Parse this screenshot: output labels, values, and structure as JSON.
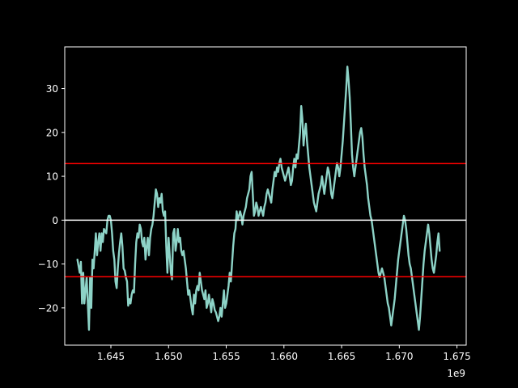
{
  "chart_data": {
    "type": "line",
    "title": "",
    "xlabel": "",
    "ylabel": "",
    "x_offset_label": "1e9",
    "xlim": [
      1.641,
      1.6758
    ],
    "ylim": [
      -28.5,
      39.5
    ],
    "x_ticks": [
      1.645,
      1.65,
      1.655,
      1.66,
      1.665,
      1.67,
      1.675
    ],
    "x_tick_labels": [
      "1.645",
      "1.650",
      "1.655",
      "1.660",
      "1.665",
      "1.670",
      "1.675"
    ],
    "y_ticks": [
      -20,
      -10,
      0,
      10,
      20,
      30
    ],
    "y_tick_labels": [
      "−20",
      "−10",
      "0",
      "10",
      "20",
      "30"
    ],
    "grid": false,
    "background": "#000000",
    "series_color": "#8dd3c7",
    "series": [
      {
        "color": "#8dd3c7",
        "points": [
          [
            1.6421,
            -9
          ],
          [
            1.6423,
            -12
          ],
          [
            1.6424,
            -9.5
          ],
          [
            1.6425,
            -19
          ],
          [
            1.6426,
            -12
          ],
          [
            1.6427,
            -19
          ],
          [
            1.6429,
            -13
          ],
          [
            1.643,
            -19
          ],
          [
            1.6431,
            -25
          ],
          [
            1.6432,
            -13
          ],
          [
            1.6433,
            -20
          ],
          [
            1.6434,
            -9
          ],
          [
            1.6435,
            -11
          ],
          [
            1.6436,
            -7
          ],
          [
            1.6437,
            -3
          ],
          [
            1.6438,
            -8
          ],
          [
            1.6439,
            -5
          ],
          [
            1.644,
            -3
          ],
          [
            1.6441,
            -7
          ],
          [
            1.6442,
            -3
          ],
          [
            1.6443,
            -5
          ],
          [
            1.6444,
            -2
          ],
          [
            1.6446,
            -3
          ],
          [
            1.6447,
            0
          ],
          [
            1.6448,
            1
          ],
          [
            1.6449,
            1
          ],
          [
            1.645,
            0
          ],
          [
            1.6451,
            -3
          ],
          [
            1.6452,
            -7
          ],
          [
            1.6453,
            -9
          ],
          [
            1.6454,
            -14
          ],
          [
            1.6455,
            -15.5
          ],
          [
            1.6456,
            -11
          ],
          [
            1.6457,
            -7.5
          ],
          [
            1.6458,
            -5
          ],
          [
            1.6459,
            -3
          ],
          [
            1.646,
            -6
          ],
          [
            1.6461,
            -11
          ],
          [
            1.6462,
            -11.5
          ],
          [
            1.6463,
            -13
          ],
          [
            1.6464,
            -14
          ],
          [
            1.6465,
            -19.5
          ],
          [
            1.6466,
            -18
          ],
          [
            1.6467,
            -19
          ],
          [
            1.6468,
            -17
          ],
          [
            1.6469,
            -16
          ],
          [
            1.647,
            -16.5
          ],
          [
            1.6471,
            -10
          ],
          [
            1.6472,
            -5
          ],
          [
            1.6473,
            -3
          ],
          [
            1.6474,
            -4
          ],
          [
            1.6475,
            -1
          ],
          [
            1.6476,
            -2
          ],
          [
            1.6477,
            -5
          ],
          [
            1.6478,
            -6
          ],
          [
            1.6479,
            -4
          ],
          [
            1.648,
            -9
          ],
          [
            1.6481,
            -6
          ],
          [
            1.6482,
            -4
          ],
          [
            1.6483,
            -8
          ],
          [
            1.6484,
            -4
          ],
          [
            1.6485,
            -2
          ],
          [
            1.6486,
            -1
          ],
          [
            1.6487,
            1
          ],
          [
            1.6488,
            4
          ],
          [
            1.6489,
            7
          ],
          [
            1.649,
            6
          ],
          [
            1.6491,
            3
          ],
          [
            1.6492,
            5
          ],
          [
            1.6493,
            4
          ],
          [
            1.6494,
            6
          ],
          [
            1.6495,
            2
          ],
          [
            1.6496,
            1
          ],
          [
            1.6497,
            2
          ],
          [
            1.6498,
            -6
          ],
          [
            1.6499,
            -12
          ],
          [
            1.65,
            -4
          ],
          [
            1.6501,
            -8
          ],
          [
            1.6502,
            -12
          ],
          [
            1.6503,
            -13.5
          ],
          [
            1.6504,
            -3
          ],
          [
            1.6505,
            -2
          ],
          [
            1.6506,
            -7
          ],
          [
            1.6507,
            -5
          ],
          [
            1.6508,
            -2
          ],
          [
            1.6509,
            -5
          ],
          [
            1.651,
            -4
          ],
          [
            1.6511,
            -7
          ],
          [
            1.6512,
            -8
          ],
          [
            1.6513,
            -7
          ],
          [
            1.6514,
            -9
          ],
          [
            1.6515,
            -11
          ],
          [
            1.6516,
            -14
          ],
          [
            1.6517,
            -17
          ],
          [
            1.6518,
            -16
          ],
          [
            1.6519,
            -18
          ],
          [
            1.652,
            -20
          ],
          [
            1.6521,
            -21.5
          ],
          [
            1.6522,
            -17
          ],
          [
            1.6523,
            -19
          ],
          [
            1.6524,
            -16
          ],
          [
            1.6525,
            -15
          ],
          [
            1.6526,
            -16
          ],
          [
            1.6527,
            -12
          ],
          [
            1.6528,
            -14
          ],
          [
            1.6529,
            -16
          ],
          [
            1.653,
            -17
          ],
          [
            1.6531,
            -18
          ],
          [
            1.6532,
            -16
          ],
          [
            1.6533,
            -20
          ],
          [
            1.6534,
            -19
          ],
          [
            1.6535,
            -17
          ],
          [
            1.6536,
            -19
          ],
          [
            1.6537,
            -21
          ],
          [
            1.6538,
            -18
          ],
          [
            1.6539,
            -19
          ],
          [
            1.654,
            -20.5
          ],
          [
            1.6541,
            -21
          ],
          [
            1.6542,
            -22
          ],
          [
            1.6543,
            -23
          ],
          [
            1.6544,
            -22
          ],
          [
            1.6545,
            -20
          ],
          [
            1.6546,
            -22
          ],
          [
            1.6547,
            -19
          ],
          [
            1.6548,
            -16
          ],
          [
            1.6549,
            -20
          ],
          [
            1.655,
            -19
          ],
          [
            1.6551,
            -17
          ],
          [
            1.6552,
            -15
          ],
          [
            1.6553,
            -12
          ],
          [
            1.6554,
            -14
          ],
          [
            1.6555,
            -10
          ],
          [
            1.6556,
            -6
          ],
          [
            1.6557,
            -3
          ],
          [
            1.6558,
            -2
          ],
          [
            1.6559,
            2
          ],
          [
            1.656,
            0
          ],
          [
            1.6561,
            1
          ],
          [
            1.6562,
            2
          ],
          [
            1.6563,
            1
          ],
          [
            1.6564,
            -1
          ],
          [
            1.6565,
            1
          ],
          [
            1.6566,
            2
          ],
          [
            1.6567,
            3
          ],
          [
            1.6568,
            5
          ],
          [
            1.6569,
            6
          ],
          [
            1.657,
            7
          ],
          [
            1.6571,
            10
          ],
          [
            1.6572,
            11
          ],
          [
            1.6573,
            6
          ],
          [
            1.6574,
            1
          ],
          [
            1.6575,
            2
          ],
          [
            1.6576,
            4
          ],
          [
            1.6577,
            3
          ],
          [
            1.6578,
            1
          ],
          [
            1.6579,
            2
          ],
          [
            1.658,
            3
          ],
          [
            1.6581,
            2
          ],
          [
            1.6582,
            1
          ],
          [
            1.6583,
            3
          ],
          [
            1.6584,
            4
          ],
          [
            1.6585,
            6
          ],
          [
            1.6586,
            7
          ],
          [
            1.6587,
            6
          ],
          [
            1.6588,
            5
          ],
          [
            1.6589,
            4
          ],
          [
            1.659,
            7
          ],
          [
            1.6591,
            9
          ],
          [
            1.6592,
            11
          ],
          [
            1.6593,
            10
          ],
          [
            1.6594,
            12
          ],
          [
            1.6595,
            11
          ],
          [
            1.6596,
            13
          ],
          [
            1.6597,
            14
          ],
          [
            1.6598,
            12
          ],
          [
            1.6599,
            11
          ],
          [
            1.66,
            10
          ],
          [
            1.6601,
            9
          ],
          [
            1.6602,
            10
          ],
          [
            1.6603,
            11
          ],
          [
            1.6604,
            12
          ],
          [
            1.6605,
            10
          ],
          [
            1.6606,
            8
          ],
          [
            1.6607,
            9
          ],
          [
            1.6608,
            12
          ],
          [
            1.6609,
            14
          ],
          [
            1.661,
            12
          ],
          [
            1.6611,
            15
          ],
          [
            1.6612,
            14
          ],
          [
            1.6613,
            17
          ],
          [
            1.6614,
            20
          ],
          [
            1.6615,
            26
          ],
          [
            1.6616,
            23
          ],
          [
            1.6617,
            17
          ],
          [
            1.6618,
            20
          ],
          [
            1.6619,
            22
          ],
          [
            1.662,
            18
          ],
          [
            1.6621,
            15
          ],
          [
            1.6622,
            12
          ],
          [
            1.6623,
            10
          ],
          [
            1.6624,
            8
          ],
          [
            1.6625,
            6
          ],
          [
            1.6626,
            4
          ],
          [
            1.6627,
            3
          ],
          [
            1.6628,
            2
          ],
          [
            1.6629,
            4
          ],
          [
            1.663,
            6
          ],
          [
            1.6631,
            7
          ],
          [
            1.6632,
            8
          ],
          [
            1.6633,
            10
          ],
          [
            1.6634,
            8
          ],
          [
            1.6635,
            6
          ],
          [
            1.6636,
            8
          ],
          [
            1.6637,
            10
          ],
          [
            1.6638,
            12
          ],
          [
            1.6639,
            11
          ],
          [
            1.664,
            9
          ],
          [
            1.6641,
            6
          ],
          [
            1.6642,
            5
          ],
          [
            1.6643,
            7
          ],
          [
            1.6644,
            9
          ],
          [
            1.6645,
            11
          ],
          [
            1.6646,
            13
          ],
          [
            1.6647,
            12
          ],
          [
            1.6648,
            10
          ],
          [
            1.6649,
            12
          ],
          [
            1.665,
            15
          ],
          [
            1.6651,
            18
          ],
          [
            1.6652,
            22
          ],
          [
            1.6653,
            26
          ],
          [
            1.6654,
            30
          ],
          [
            1.6655,
            35
          ],
          [
            1.6656,
            32
          ],
          [
            1.6657,
            28
          ],
          [
            1.6658,
            22
          ],
          [
            1.6659,
            15
          ],
          [
            1.666,
            12
          ],
          [
            1.6661,
            10
          ],
          [
            1.6662,
            12
          ],
          [
            1.6663,
            14
          ],
          [
            1.6664,
            16
          ],
          [
            1.6665,
            18
          ],
          [
            1.6666,
            20
          ],
          [
            1.6667,
            21
          ],
          [
            1.6668,
            19
          ],
          [
            1.6669,
            15
          ],
          [
            1.667,
            12
          ],
          [
            1.6671,
            10
          ],
          [
            1.6672,
            8
          ],
          [
            1.6673,
            5
          ],
          [
            1.6674,
            3
          ],
          [
            1.6675,
            1
          ],
          [
            1.6676,
            0
          ],
          [
            1.6677,
            -2
          ],
          [
            1.6678,
            -4
          ],
          [
            1.6679,
            -6
          ],
          [
            1.668,
            -8
          ],
          [
            1.6681,
            -10
          ],
          [
            1.6682,
            -12
          ],
          [
            1.6683,
            -13
          ],
          [
            1.6684,
            -12
          ],
          [
            1.6685,
            -11
          ],
          [
            1.6686,
            -12
          ],
          [
            1.6687,
            -13
          ],
          [
            1.6688,
            -15
          ],
          [
            1.6689,
            -17
          ],
          [
            1.669,
            -19
          ],
          [
            1.6691,
            -20
          ],
          [
            1.6692,
            -22
          ],
          [
            1.6693,
            -24
          ],
          [
            1.6694,
            -22
          ],
          [
            1.6695,
            -20
          ],
          [
            1.6696,
            -18
          ],
          [
            1.6697,
            -15
          ],
          [
            1.6698,
            -12
          ],
          [
            1.6699,
            -9
          ],
          [
            1.67,
            -7
          ],
          [
            1.6701,
            -5
          ],
          [
            1.6702,
            -3
          ],
          [
            1.6703,
            -1
          ],
          [
            1.6704,
            1
          ],
          [
            1.6705,
            0
          ],
          [
            1.6706,
            -2
          ],
          [
            1.6707,
            -5
          ],
          [
            1.6708,
            -8
          ],
          [
            1.6709,
            -10
          ],
          [
            1.671,
            -11
          ],
          [
            1.6711,
            -13
          ],
          [
            1.6712,
            -15
          ],
          [
            1.6713,
            -17
          ],
          [
            1.6714,
            -19
          ],
          [
            1.6715,
            -21
          ],
          [
            1.6716,
            -23
          ],
          [
            1.6717,
            -25
          ],
          [
            1.6718,
            -22
          ],
          [
            1.6719,
            -18
          ],
          [
            1.672,
            -14
          ],
          [
            1.6721,
            -10
          ],
          [
            1.6722,
            -7
          ],
          [
            1.6723,
            -5
          ],
          [
            1.6724,
            -3
          ],
          [
            1.6725,
            -1
          ],
          [
            1.6726,
            -3
          ],
          [
            1.6727,
            -6
          ],
          [
            1.6728,
            -9
          ],
          [
            1.6729,
            -11
          ],
          [
            1.673,
            -12
          ],
          [
            1.6731,
            -10
          ],
          [
            1.6732,
            -8
          ],
          [
            1.6733,
            -5
          ],
          [
            1.6734,
            -3
          ],
          [
            1.6735,
            -7
          ]
        ]
      }
    ],
    "horizontal_lines": [
      {
        "y": 0,
        "color": "#ffffff"
      },
      {
        "y": 12.9,
        "color": "#ff0000"
      },
      {
        "y": -12.9,
        "color": "#ff0000"
      }
    ]
  }
}
